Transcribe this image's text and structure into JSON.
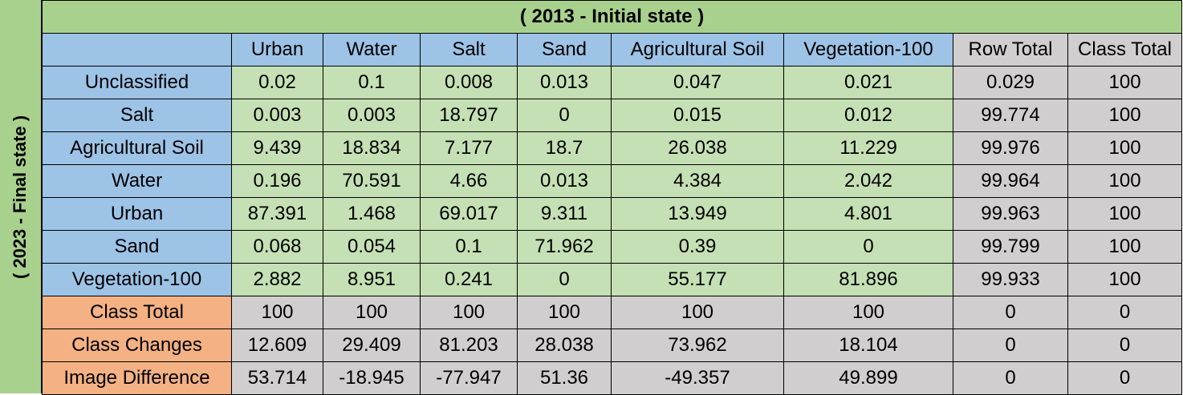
{
  "initial_state_title": "( 2013 - Initial state )",
  "final_state_title": "( 2023 - Final state )",
  "columns": [
    "Urban",
    "Water",
    "Salt",
    "Sand",
    "Agricultural Soil",
    "Vegetation-100",
    "Row Total",
    "Class Total"
  ],
  "class_rows": [
    {
      "label": "Unclassified",
      "values": [
        "0.02",
        "0.1",
        "0.008",
        "0.013",
        "0.047",
        "0.021",
        "0.029",
        "100"
      ]
    },
    {
      "label": "Salt",
      "values": [
        "0.003",
        "0.003",
        "18.797",
        "0",
        "0.015",
        "0.012",
        "99.774",
        "100"
      ]
    },
    {
      "label": "Agricultural Soil",
      "values": [
        "9.439",
        "18.834",
        "7.177",
        "18.7",
        "26.038",
        "11.229",
        "99.976",
        "100"
      ]
    },
    {
      "label": "Water",
      "values": [
        "0.196",
        "70.591",
        "4.66",
        "0.013",
        "4.384",
        "2.042",
        "99.964",
        "100"
      ]
    },
    {
      "label": "Urban",
      "values": [
        "87.391",
        "1.468",
        "69.017",
        "9.311",
        "13.949",
        "4.801",
        "99.963",
        "100"
      ]
    },
    {
      "label": "Sand",
      "values": [
        "0.068",
        "0.054",
        "0.1",
        "71.962",
        "0.39",
        "0",
        "99.799",
        "100"
      ]
    },
    {
      "label": "Vegetation-100",
      "values": [
        "2.882",
        "8.951",
        "0.241",
        "0",
        "55.177",
        "81.896",
        "99.933",
        "100"
      ]
    }
  ],
  "summary_rows": [
    {
      "label": "Class Total",
      "values": [
        "100",
        "100",
        "100",
        "100",
        "100",
        "100",
        "0",
        "0"
      ]
    },
    {
      "label": "Class Changes",
      "values": [
        "12.609",
        "29.409",
        "81.203",
        "28.038",
        "73.962",
        "18.104",
        "0",
        "0"
      ]
    },
    {
      "label": "Image Difference",
      "values": [
        "53.714",
        "-18.945",
        "-77.947",
        "51.36",
        "-49.357",
        "49.899",
        "0",
        "0"
      ]
    }
  ],
  "colors": {
    "title_green": "#a9d18e",
    "header_blue": "#9dc3e6",
    "cell_green": "#c5e0b4",
    "cell_gray": "#d0cece",
    "summary_orange": "#f4b183"
  }
}
